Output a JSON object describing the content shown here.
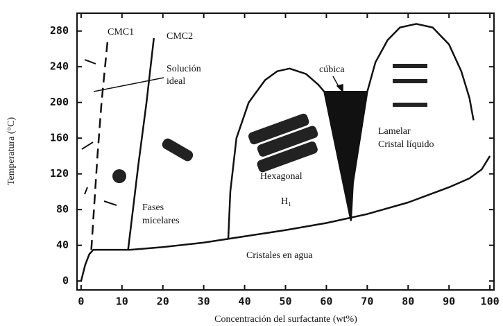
{
  "chart_data": {
    "type": "line",
    "x_label": "Concentración del surfactante (wt%)",
    "y_label": "Temperatura (°C)",
    "xlim": [
      -1,
      101
    ],
    "ylim": [
      -10,
      300
    ],
    "xticks": [
      0,
      10,
      20,
      30,
      40,
      50,
      60,
      70,
      80,
      90,
      100
    ],
    "yticks": [
      0,
      40,
      80,
      120,
      160,
      200,
      240,
      280
    ],
    "annotations": [
      "CMC1",
      "CMC2",
      "Solución",
      "ideal",
      "cúbica",
      "Hexagonal",
      "H₁",
      "Lamelar",
      "Cristal líquido",
      "Fases",
      "micelares",
      "Cristales en agua"
    ],
    "series": [
      {
        "color": "#111111",
        "x": [
          0,
          1,
          2,
          3,
          6,
          12,
          20,
          30,
          40,
          50,
          60,
          70,
          80,
          90,
          95,
          98,
          100
        ],
        "values": [
          0,
          18,
          30,
          35,
          35,
          35,
          38,
          43,
          50,
          57,
          65,
          75,
          88,
          105,
          115,
          125,
          140
        ]
      },
      {
        "color": "#111111",
        "dash": true,
        "x": [
          2.5,
          4,
          5,
          6.5
        ],
        "values": [
          35,
          140,
          200,
          270
        ]
      },
      {
        "color": "#111111",
        "x": [
          11.5,
          14,
          16,
          17.8
        ],
        "values": [
          35,
          130,
          200,
          272
        ]
      },
      {
        "color": "#111111",
        "x": [
          36,
          36.5,
          38,
          41,
          45,
          48,
          51,
          55,
          58,
          59.5
        ],
        "values": [
          47,
          100,
          160,
          200,
          225,
          235,
          238,
          232,
          220,
          212
        ]
      },
      {
        "color": "#111111",
        "fill": "#111111",
        "x": [
          59.5,
          70,
          66.5,
          66
        ],
        "values": [
          212,
          212,
          110,
          68
        ]
      },
      {
        "color": "#111111",
        "x": [
          70,
          72,
          75,
          78,
          82,
          86,
          90,
          93,
          95,
          96
        ],
        "values": [
          212,
          245,
          270,
          284,
          288,
          284,
          265,
          235,
          205,
          180
        ]
      }
    ]
  }
}
